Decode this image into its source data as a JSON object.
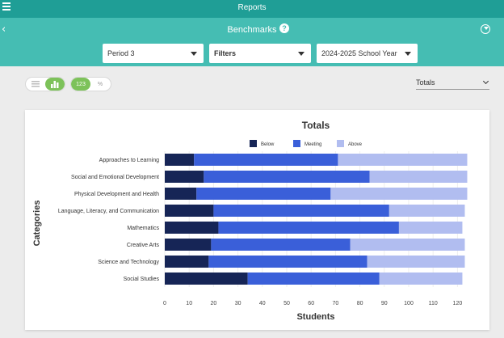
{
  "topbar": {
    "title": "Reports"
  },
  "subbar": {
    "title": "Benchmarks",
    "help": "?"
  },
  "selectors": {
    "period": "Period 3",
    "filters": "Filters",
    "school_year": "2024-2025 School Year"
  },
  "view_toggle": {
    "count_label": "123",
    "percent_label": "%"
  },
  "totals_select": {
    "value": "Totals"
  },
  "colors": {
    "below": "#162556",
    "meeting": "#3a5fd9",
    "above": "#b1bdf0"
  },
  "chart_data": {
    "type": "bar",
    "orientation": "horizontal",
    "stacked": true,
    "title": "Totals",
    "xlabel": "Students",
    "ylabel": "Categories",
    "categories": [
      "Approaches to Learning",
      "Social and Emotional Development",
      "Physical Development and Health",
      "Language, Literacy, and Communication",
      "Mathematics",
      "Creative Arts",
      "Science and Technology",
      "Social Studies"
    ],
    "series": [
      {
        "name": "Below",
        "values": [
          12,
          16,
          13,
          20,
          22,
          19,
          18,
          34
        ]
      },
      {
        "name": "Meeting",
        "values": [
          59,
          68,
          55,
          72,
          74,
          57,
          65,
          54
        ]
      },
      {
        "name": "Above",
        "values": [
          53,
          40,
          56,
          31,
          26,
          47,
          40,
          34
        ]
      }
    ],
    "xlim": [
      0,
      125
    ],
    "xticks": [
      "0",
      "10",
      "20",
      "30",
      "40",
      "50",
      "60",
      "70",
      "80",
      "90",
      "100",
      "110",
      "120"
    ],
    "legend": "top-center"
  }
}
